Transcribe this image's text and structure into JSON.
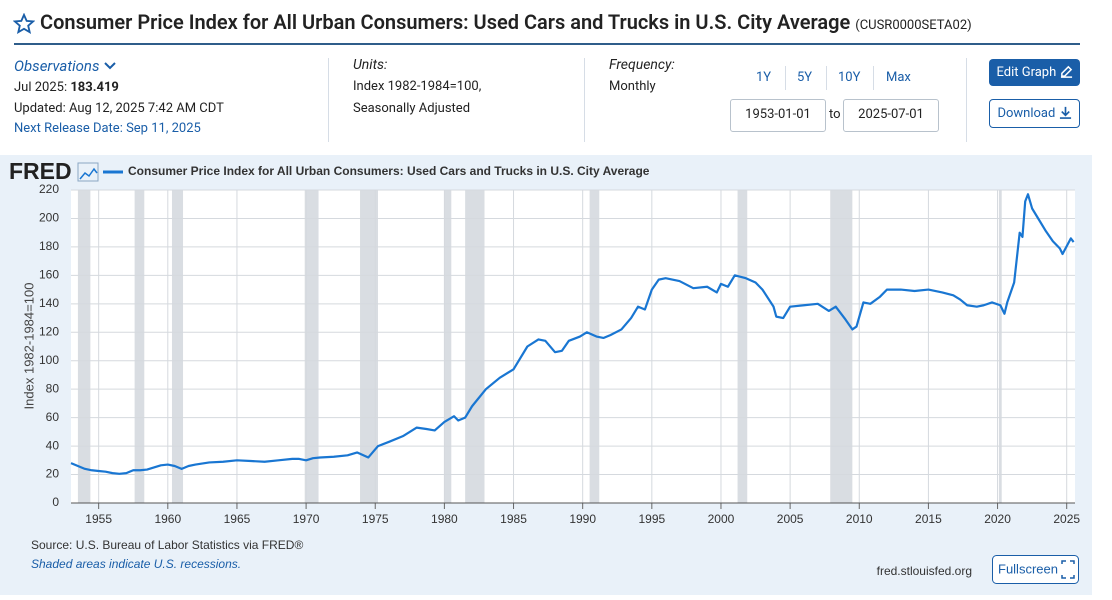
{
  "header": {
    "title": "Consumer Price Index for All Urban Consumers: Used Cars and Trucks in U.S. City Average",
    "series_id": "(CUSR0000SETA02)"
  },
  "observations": {
    "label": "Observations",
    "date": "Jul 2025:",
    "value": "183.419",
    "updated": "Updated: Aug 12, 2025 7:42 AM CDT",
    "next_release": "Next Release Date: Sep 11, 2025"
  },
  "units": {
    "label": "Units:",
    "lines": [
      "Index 1982-1984=100,",
      "Seasonally Adjusted"
    ]
  },
  "frequency": {
    "label": "Frequency:",
    "value": "Monthly"
  },
  "range_buttons": [
    "1Y",
    "5Y",
    "10Y",
    "Max"
  ],
  "date_range": {
    "start": "1953-01-01",
    "separator": "to",
    "end": "2025-07-01"
  },
  "buttons": {
    "edit": "Edit Graph",
    "download": "Download",
    "fullscreen": "Fullscreen"
  },
  "chart_data": {
    "type": "line",
    "logo": "FRED",
    "y_label": "Index 1982-1984=100",
    "source": "Source: U.S. Bureau of Labor Statistics via FRED®",
    "note": "Shaded areas indicate U.S. recessions.",
    "site": "fred.stlouisfed.org",
    "x": [
      1953,
      1953.5,
      1954,
      1954.5,
      1955,
      1955.5,
      1956,
      1956.5,
      1957,
      1957.5,
      1958,
      1958.5,
      1959,
      1959.5,
      1960,
      1960.5,
      1961,
      1961.5,
      1962,
      1963,
      1964,
      1965,
      1966,
      1967,
      1968,
      1969,
      1969.5,
      1970,
      1970.5,
      1971,
      1972,
      1973,
      1973.7,
      1974.5,
      1975.2,
      1976,
      1977,
      1978,
      1978.7,
      1979.3,
      1980,
      1980.7,
      1981,
      1981.5,
      1982,
      1983,
      1984,
      1985,
      1986,
      1986.8,
      1987.3,
      1988,
      1988.5,
      1989,
      1989.8,
      1990.3,
      1991,
      1991.5,
      1992,
      1992.8,
      1993.5,
      1994,
      1994.5,
      1995,
      1995.5,
      1996,
      1997,
      1998,
      1999,
      1999.7,
      2000,
      2000.5,
      2001,
      2001.8,
      2002.5,
      2003,
      2003.8,
      2004,
      2004.5,
      2005,
      2006,
      2007,
      2007.8,
      2008.3,
      2009,
      2009.5,
      2009.8,
      2010.3,
      2010.8,
      2011.5,
      2012,
      2013,
      2014,
      2015,
      2016,
      2016.8,
      2017.3,
      2017.8,
      2018.5,
      2019,
      2019.6,
      2020.2,
      2020.5,
      2020.7,
      2021.2,
      2021.6,
      2021.8,
      2022,
      2022.2,
      2022.5,
      2023,
      2023.5,
      2024,
      2024.5,
      2024.7,
      2025.3,
      2025.5
    ],
    "series": [
      {
        "name": "Consumer Price Index for All Urban Consumers: Used Cars and Trucks in U.S. City Average",
        "color": "#1976d2",
        "values": [
          28,
          26,
          24,
          23,
          22.5,
          22,
          21,
          20.5,
          21,
          23,
          23,
          23.5,
          25,
          26.5,
          27,
          26,
          24,
          26,
          27,
          28.5,
          29,
          30,
          29.5,
          29,
          30,
          31,
          31,
          30,
          31.5,
          32,
          32.5,
          33.5,
          35.5,
          32,
          40,
          43,
          47,
          53,
          52,
          51,
          57,
          61,
          58,
          60,
          68,
          80,
          88,
          94,
          110,
          115,
          114,
          106,
          107,
          114,
          117,
          120,
          117,
          116,
          118,
          122,
          130,
          138,
          136,
          150,
          157,
          158,
          156,
          151,
          152,
          148,
          154,
          152,
          160,
          158,
          155,
          150,
          138,
          131,
          130,
          138,
          139,
          140,
          135,
          138,
          129,
          122,
          124,
          141,
          140,
          145,
          150,
          150,
          149,
          150,
          148,
          146,
          143,
          139,
          138,
          139,
          141,
          139,
          133,
          141,
          155,
          190,
          187,
          212,
          217,
          207,
          199,
          191,
          184,
          179,
          175,
          186,
          183.419
        ]
      }
    ],
    "recessions": [
      [
        1953.5,
        1954.4
      ],
      [
        1957.6,
        1958.3
      ],
      [
        1960.3,
        1961.1
      ],
      [
        1969.9,
        1970.9
      ],
      [
        1973.9,
        1975.2
      ],
      [
        1980,
        1980.5
      ],
      [
        1981.5,
        1982.9
      ],
      [
        1990.5,
        1991.2
      ],
      [
        2001.2,
        2001.9
      ],
      [
        2007.9,
        2009.5
      ],
      [
        2020.1,
        2020.3
      ]
    ],
    "xlim": [
      1953,
      2025.6
    ],
    "xticks": [
      1955,
      1960,
      1965,
      1970,
      1975,
      1980,
      1985,
      1990,
      1995,
      2000,
      2005,
      2010,
      2015,
      2020,
      2025
    ],
    "ylim": [
      0,
      220
    ],
    "yticks": [
      0,
      20,
      40,
      60,
      80,
      100,
      120,
      140,
      160,
      180,
      200,
      220
    ],
    "grid": true
  }
}
